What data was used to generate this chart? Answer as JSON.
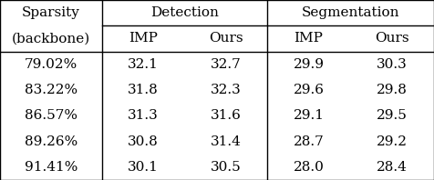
{
  "col_header_row1_left": "Sparsity",
  "col_header_row1_left2": "(backbone)",
  "col_header_row1_det": "Detection",
  "col_header_row1_seg": "Segmentation",
  "col_header_row2": [
    "IMP",
    "Ours",
    "IMP",
    "Ours"
  ],
  "rows": [
    [
      "79.02%",
      "32.1",
      "32.7",
      "29.9",
      "30.3"
    ],
    [
      "83.22%",
      "31.8",
      "32.3",
      "29.6",
      "29.8"
    ],
    [
      "86.57%",
      "31.3",
      "31.6",
      "29.1",
      "29.5"
    ],
    [
      "89.26%",
      "30.8",
      "31.4",
      "28.7",
      "29.2"
    ],
    [
      "91.41%",
      "30.1",
      "30.5",
      "28.0",
      "28.4"
    ]
  ],
  "bg_color": "#ffffff",
  "text_color": "#000000",
  "font_size": 11,
  "vx1": 0.235,
  "vx2": 0.615
}
